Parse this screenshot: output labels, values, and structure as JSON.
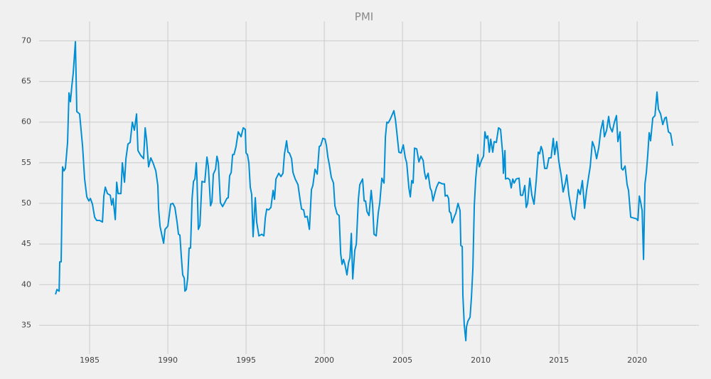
{
  "chart_data": {
    "type": "line",
    "title": "PMI",
    "color": "#008fd5",
    "grid": true,
    "xlim": [
      1981.77,
      2023.95
    ],
    "ylim": [
      30.4,
      72.4
    ],
    "xticks": [
      1985,
      1990,
      1995,
      2000,
      2005,
      2010,
      2015,
      2020
    ],
    "yticks": [
      35,
      40,
      45,
      50,
      55,
      60,
      65,
      70
    ],
    "x": [
      1982.82,
      1982.91,
      1983.05,
      1983.09,
      1983.18,
      1983.27,
      1983.36,
      1983.45,
      1983.59,
      1983.68,
      1983.77,
      1983.86,
      1983.95,
      1984.09,
      1984.18,
      1984.36,
      1984.55,
      1984.68,
      1984.82,
      1984.95,
      1985.05,
      1985.18,
      1985.32,
      1985.45,
      1985.64,
      1985.82,
      1985.91,
      1986.0,
      1986.14,
      1986.32,
      1986.41,
      1986.5,
      1986.64,
      1986.73,
      1986.82,
      1987.0,
      1987.09,
      1987.23,
      1987.32,
      1987.45,
      1987.59,
      1987.73,
      1987.86,
      1988.0,
      1988.09,
      1988.27,
      1988.45,
      1988.55,
      1988.64,
      1988.77,
      1988.91,
      1989.05,
      1989.23,
      1989.36,
      1989.41,
      1989.5,
      1989.64,
      1989.73,
      1989.82,
      1990.0,
      1990.18,
      1990.32,
      1990.45,
      1990.59,
      1990.68,
      1990.77,
      1990.86,
      1990.95,
      1991.05,
      1991.09,
      1991.18,
      1991.27,
      1991.36,
      1991.45,
      1991.55,
      1991.64,
      1991.73,
      1991.82,
      1991.86,
      1991.95,
      1992.05,
      1992.18,
      1992.36,
      1992.5,
      1992.59,
      1992.73,
      1992.82,
      1992.91,
      1993.05,
      1993.14,
      1993.23,
      1993.36,
      1993.5,
      1993.64,
      1993.77,
      1993.86,
      1993.95,
      1994.05,
      1994.14,
      1994.23,
      1994.36,
      1994.5,
      1994.68,
      1994.82,
      1994.95,
      1995.0,
      1995.09,
      1995.18,
      1995.27,
      1995.36,
      1995.45,
      1995.59,
      1995.68,
      1995.82,
      1996.0,
      1996.14,
      1996.23,
      1996.32,
      1996.45,
      1996.59,
      1996.73,
      1996.82,
      1996.91,
      1997.09,
      1997.23,
      1997.36,
      1997.45,
      1997.59,
      1997.68,
      1997.77,
      1997.91,
      1998.0,
      1998.14,
      1998.32,
      1998.45,
      1998.55,
      1998.68,
      1998.77,
      1998.91,
      1999.05,
      1999.18,
      1999.27,
      1999.41,
      1999.55,
      1999.68,
      1999.77,
      1999.91,
      2000.05,
      2000.14,
      2000.23,
      2000.32,
      2000.45,
      2000.59,
      2000.68,
      2000.82,
      2000.95,
      2001.05,
      2001.14,
      2001.23,
      2001.32,
      2001.45,
      2001.55,
      2001.64,
      2001.73,
      2001.82,
      2001.95,
      2002.05,
      2002.18,
      2002.27,
      2002.45,
      2002.55,
      2002.64,
      2002.73,
      2002.86,
      2003.0,
      2003.09,
      2003.18,
      2003.32,
      2003.45,
      2003.55,
      2003.68,
      2003.82,
      2003.91,
      2004.0,
      2004.09,
      2004.23,
      2004.45,
      2004.55,
      2004.64,
      2004.77,
      2004.91,
      2005.05,
      2005.18,
      2005.27,
      2005.41,
      2005.5,
      2005.59,
      2005.68,
      2005.77,
      2005.91,
      2006.05,
      2006.18,
      2006.32,
      2006.41,
      2006.5,
      2006.64,
      2006.77,
      2006.86,
      2006.95,
      2007.09,
      2007.18,
      2007.32,
      2007.55,
      2007.68,
      2007.73,
      2007.86,
      2007.95,
      2008.0,
      2008.09,
      2008.18,
      2008.32,
      2008.41,
      2008.55,
      2008.68,
      2008.73,
      2008.82,
      2008.86,
      2008.95,
      2009.05,
      2009.09,
      2009.18,
      2009.32,
      2009.41,
      2009.5,
      2009.59,
      2009.68,
      2009.82,
      2009.91,
      2010.05,
      2010.18,
      2010.27,
      2010.36,
      2010.45,
      2010.55,
      2010.64,
      2010.77,
      2010.86,
      2011.0,
      2011.14,
      2011.27,
      2011.41,
      2011.45,
      2011.55,
      2011.59,
      2011.73,
      2011.86,
      2011.95,
      2012.05,
      2012.14,
      2012.27,
      2012.45,
      2012.55,
      2012.68,
      2012.82,
      2012.91,
      2013.0,
      2013.14,
      2013.27,
      2013.41,
      2013.55,
      2013.68,
      2013.77,
      2013.86,
      2013.95,
      2014.09,
      2014.23,
      2014.36,
      2014.5,
      2014.64,
      2014.73,
      2014.86,
      2015.0,
      2015.14,
      2015.27,
      2015.41,
      2015.5,
      2015.64,
      2015.73,
      2015.86,
      2016.0,
      2016.09,
      2016.23,
      2016.36,
      2016.5,
      2016.64,
      2016.77,
      2016.91,
      2017.0,
      2017.14,
      2017.27,
      2017.41,
      2017.55,
      2017.68,
      2017.82,
      2017.91,
      2018.05,
      2018.18,
      2018.27,
      2018.41,
      2018.55,
      2018.68,
      2018.77,
      2018.91,
      2019.0,
      2019.09,
      2019.23,
      2019.36,
      2019.45,
      2019.59,
      2019.77,
      2019.95,
      2020.05,
      2020.14,
      2020.23,
      2020.32,
      2020.41,
      2020.5,
      2020.59,
      2020.68,
      2020.77,
      2020.86,
      2021.0,
      2021.14,
      2021.27,
      2021.36,
      2021.5,
      2021.64,
      2021.77,
      2021.86,
      2022.0,
      2022.14,
      2022.27
    ],
    "values": [
      38.8,
      39.4,
      39.2,
      42.8,
      42.8,
      54.5,
      54.0,
      54.3,
      57.5,
      63.6,
      62.5,
      64.4,
      66.0,
      69.9,
      61.3,
      61.0,
      57.0,
      53.0,
      50.8,
      50.3,
      50.6,
      49.9,
      48.3,
      47.9,
      47.9,
      47.7,
      50.9,
      52.0,
      51.2,
      51.0,
      49.8,
      50.6,
      48.0,
      52.6,
      51.2,
      51.2,
      55.0,
      52.6,
      55.5,
      57.3,
      57.5,
      60.0,
      59.0,
      61.0,
      56.5,
      55.9,
      55.5,
      59.3,
      57.8,
      54.5,
      55.6,
      55.0,
      54.0,
      52.2,
      49.3,
      47.2,
      45.9,
      45.1,
      46.8,
      47.2,
      49.9,
      50.0,
      49.5,
      47.7,
      46.2,
      46.1,
      43.5,
      41.2,
      40.8,
      39.2,
      39.4,
      40.8,
      44.5,
      44.5,
      50.6,
      52.7,
      53.0,
      55.0,
      53.2,
      46.8,
      47.3,
      52.7,
      52.6,
      55.7,
      54.5,
      49.7,
      50.2,
      53.6,
      54.2,
      55.8,
      55.0,
      50.1,
      49.6,
      50.1,
      50.6,
      50.7,
      53.4,
      53.8,
      56.0,
      56.0,
      57.0,
      58.8,
      58.2,
      59.3,
      59.1,
      56.2,
      56.0,
      55.0,
      52.0,
      51.1,
      45.9,
      50.7,
      47.7,
      46.0,
      46.2,
      46.0,
      48.2,
      49.3,
      49.2,
      49.5,
      51.6,
      50.5,
      53.0,
      53.7,
      53.3,
      53.7,
      56.0,
      57.7,
      56.3,
      56.2,
      55.5,
      53.8,
      53.0,
      52.3,
      50.5,
      49.3,
      49.2,
      48.3,
      48.4,
      46.8,
      51.7,
      52.2,
      54.2,
      53.6,
      57.0,
      57.1,
      58.0,
      57.9,
      57.1,
      55.7,
      54.8,
      53.2,
      52.5,
      49.7,
      48.7,
      48.5,
      43.8,
      42.5,
      43.1,
      42.5,
      41.2,
      42.7,
      43.3,
      46.3,
      40.7,
      44.2,
      45.0,
      50.5,
      52.3,
      53.0,
      50.3,
      50.3,
      49.0,
      48.5,
      51.6,
      49.8,
      46.2,
      46.0,
      48.8,
      50.1,
      53.1,
      52.5,
      58.2,
      60.0,
      59.9,
      60.4,
      61.4,
      60.3,
      58.7,
      56.3,
      56.2,
      57.2,
      55.6,
      55.0,
      51.9,
      50.8,
      52.8,
      52.5,
      56.8,
      56.7,
      55.1,
      55.8,
      55.3,
      53.8,
      53.0,
      53.7,
      51.9,
      51.5,
      50.3,
      51.4,
      52.0,
      52.6,
      52.4,
      52.4,
      50.9,
      51.0,
      50.6,
      49.0,
      48.8,
      47.6,
      48.4,
      48.8,
      50.0,
      49.1,
      44.8,
      44.7,
      38.7,
      35.0,
      33.1,
      34.8,
      35.5,
      36.0,
      38.5,
      42.0,
      49.7,
      53.0,
      56.0,
      54.5,
      55.3,
      55.8,
      58.8,
      58.0,
      58.3,
      56.3,
      57.9,
      56.3,
      57.6,
      57.5,
      59.3,
      59.1,
      56.0,
      53.7,
      56.5,
      53.0,
      53.1,
      52.9,
      51.9,
      53.0,
      52.5,
      53.0,
      53.1,
      51.0,
      51.0,
      52.2,
      49.5,
      50.0,
      53.1,
      51.0,
      49.9,
      52.8,
      56.3,
      56.1,
      57.0,
      56.5,
      54.3,
      54.3,
      55.6,
      55.6,
      58.0,
      56.0,
      57.6,
      55.1,
      53.5,
      51.4,
      52.5,
      53.5,
      51.0,
      50.0,
      48.4,
      48.0,
      49.5,
      51.7,
      51.1,
      52.8,
      49.4,
      51.6,
      53.4,
      54.5,
      57.6,
      56.9,
      55.5,
      56.9,
      59.0,
      60.2,
      58.2,
      59.0,
      60.7,
      59.4,
      58.8,
      60.0,
      60.8,
      57.6,
      58.8,
      54.3,
      54.1,
      54.6,
      52.3,
      51.6,
      48.3,
      48.2,
      48.1,
      47.9,
      50.9,
      50.1,
      49.1,
      43.1,
      52.4,
      53.8,
      56.0,
      58.7,
      57.7,
      60.5,
      60.8,
      63.7,
      61.6,
      61.0,
      59.7,
      60.5,
      60.6,
      58.8,
      58.6,
      57.1
    ]
  }
}
